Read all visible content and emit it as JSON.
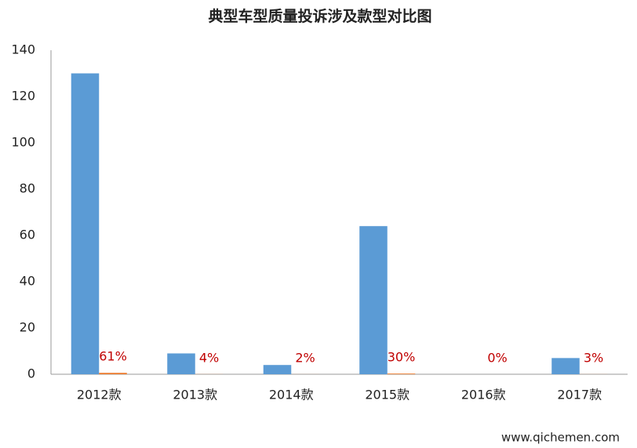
{
  "chart_data": {
    "type": "bar",
    "title": "典型车型质量投诉涉及款型对比图",
    "categories": [
      "2012款",
      "2013款",
      "2014款",
      "2015款",
      "2016款",
      "2017款"
    ],
    "series": [
      {
        "color": "#5b9bd5",
        "values": [
          130,
          9,
          4,
          64,
          0,
          7
        ]
      },
      {
        "color": "#ed7d31",
        "values": [
          0.61,
          0.04,
          0.02,
          0.3,
          0,
          0.03
        ],
        "value_labels": [
          "61%",
          "4%",
          "2%",
          "30%",
          "0%",
          "3%"
        ],
        "label_color": "#c00000"
      }
    ],
    "ylim": [
      0,
      140
    ],
    "yticks": [
      0,
      20,
      40,
      60,
      80,
      100,
      120,
      140
    ],
    "grid": false,
    "watermark": "www.qichemen.com"
  }
}
